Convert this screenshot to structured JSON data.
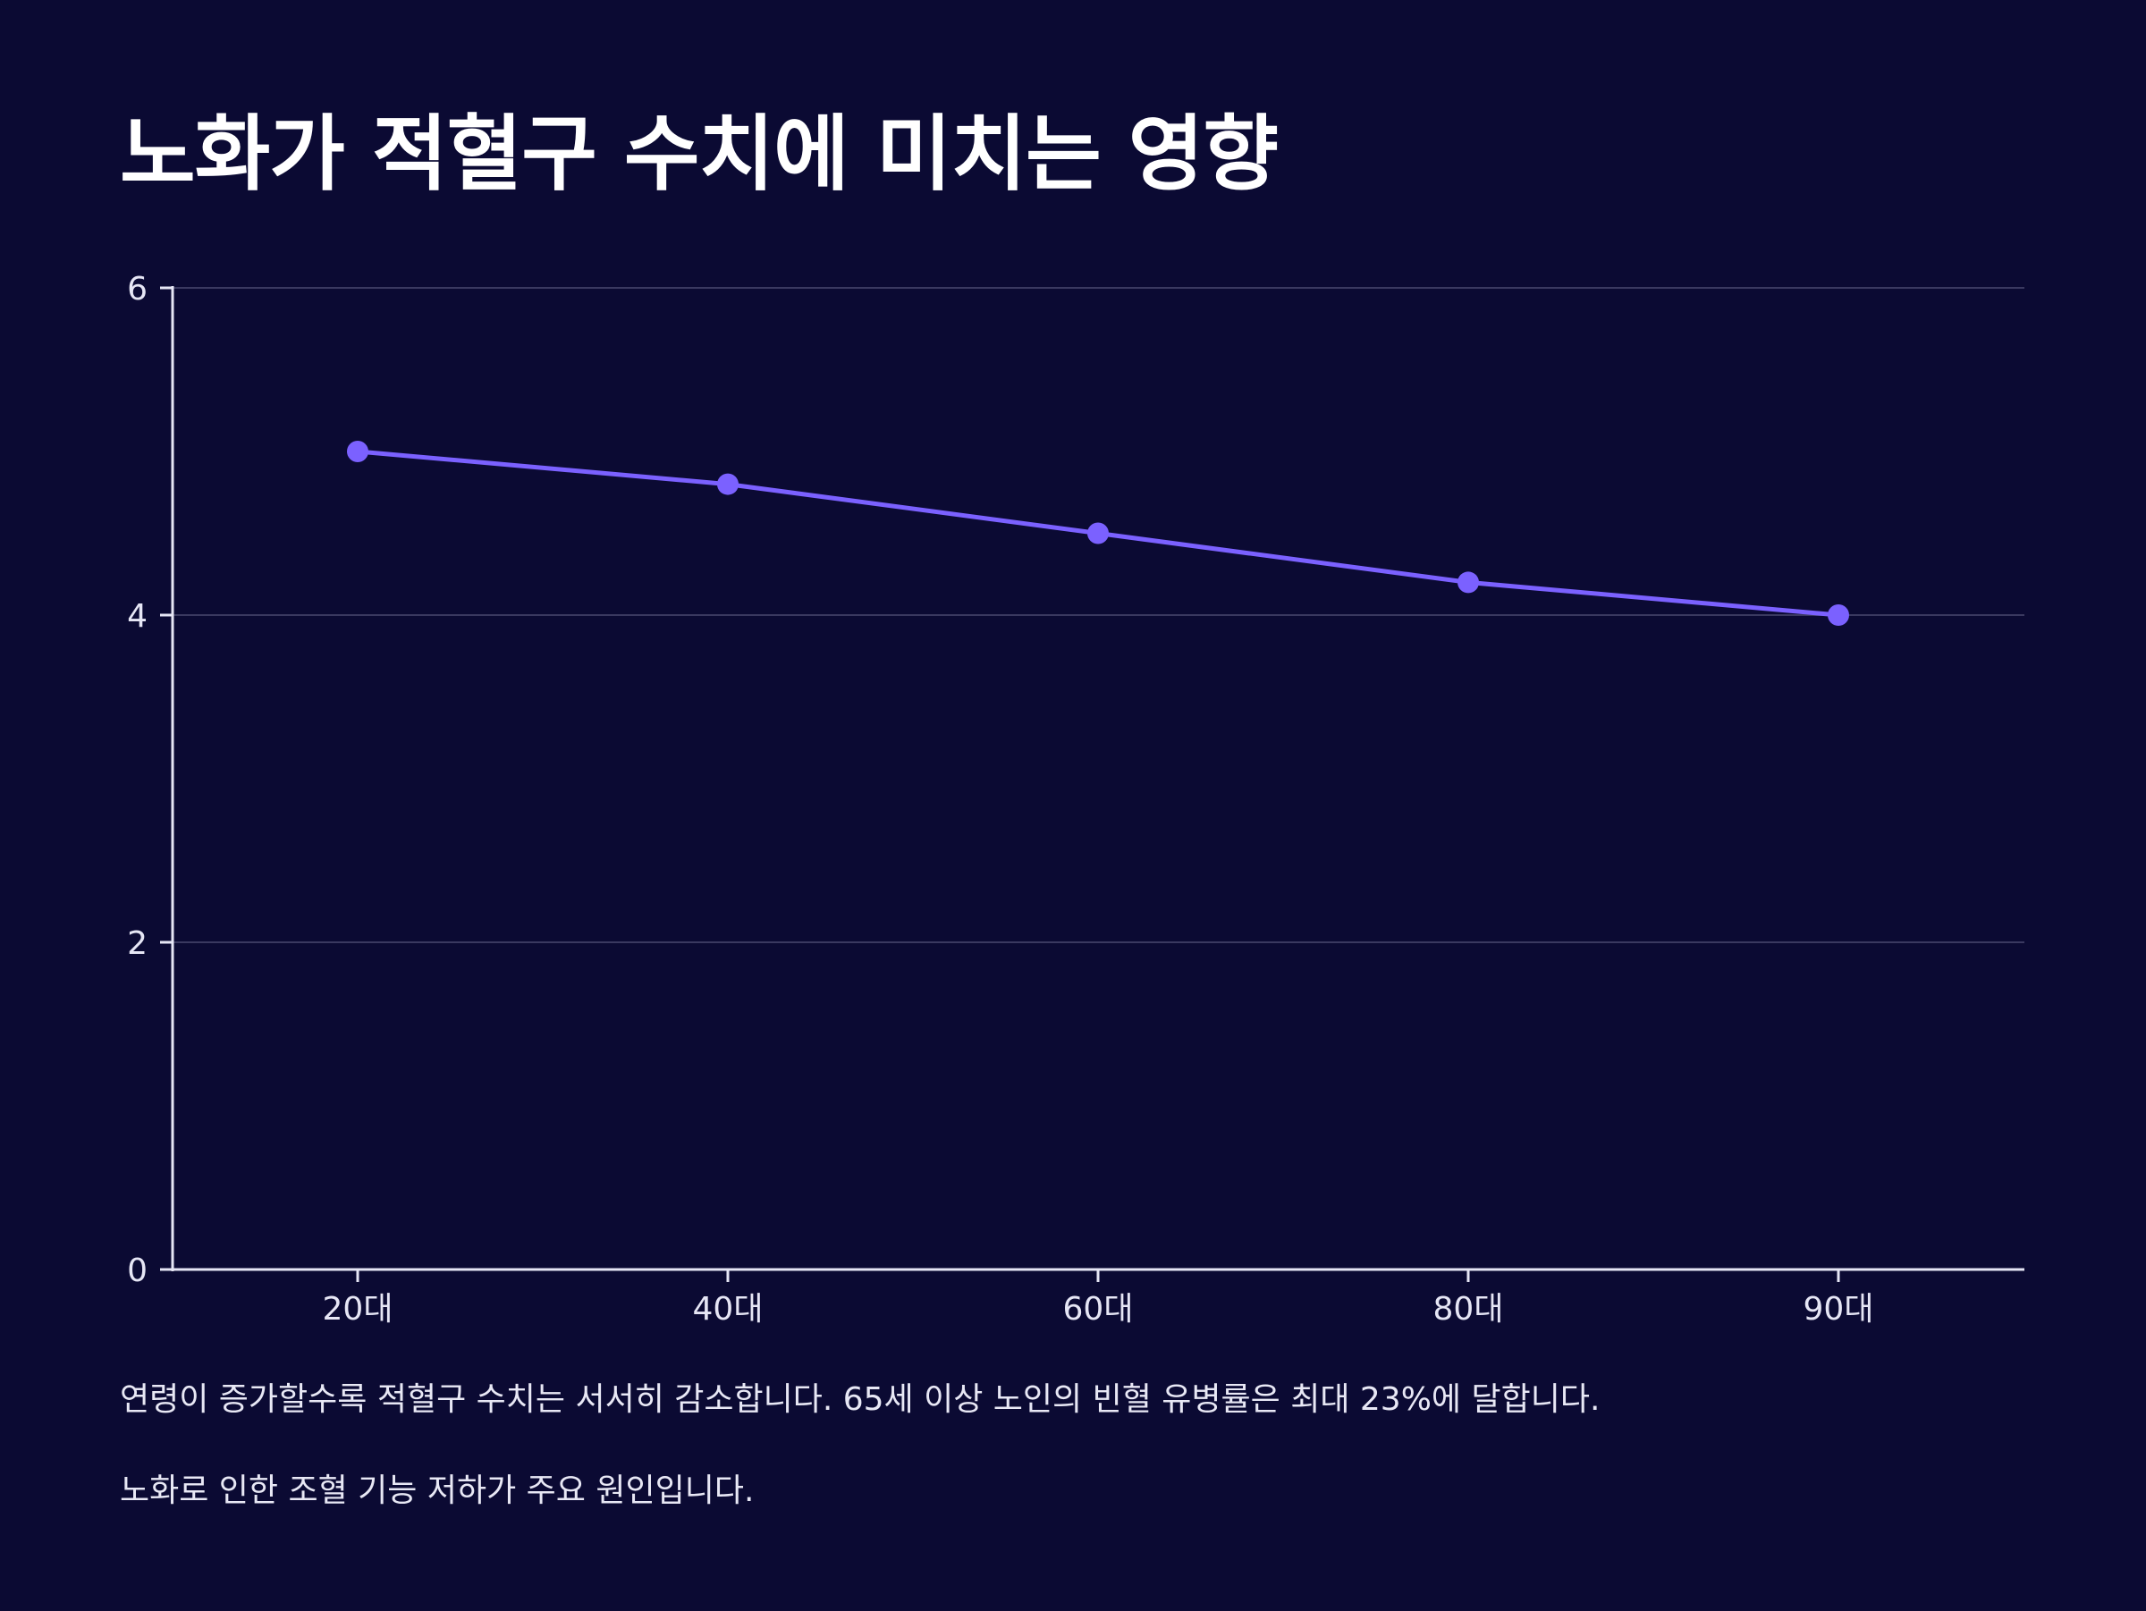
{
  "title": "노화가 적혈구 수치에 미치는 영향",
  "colors": {
    "background": "#0b0a33",
    "line": "#7b61ff",
    "grid": "#3a3960",
    "axis": "#e6e6f5"
  },
  "chart_data": {
    "type": "line",
    "title": "노화가 적혈구 수치에 미치는 영향",
    "xlabel": "",
    "ylabel": "",
    "categories": [
      "20대",
      "40대",
      "60대",
      "80대",
      "90대"
    ],
    "series": [
      {
        "name": "적혈구 수치",
        "values": [
          5.0,
          4.8,
          4.5,
          4.2,
          4.0
        ]
      }
    ],
    "ylim": [
      0,
      6
    ],
    "yticks": [
      0,
      2,
      4,
      6
    ],
    "grid": true
  },
  "captions": [
    "연령이 증가할수록 적혈구 수치는 서서히 감소합니다. 65세 이상 노인의 빈혈 유병률은 최대 23%에 달합니다.",
    "노화로 인한 조혈 기능 저하가 주요 원인입니다."
  ]
}
